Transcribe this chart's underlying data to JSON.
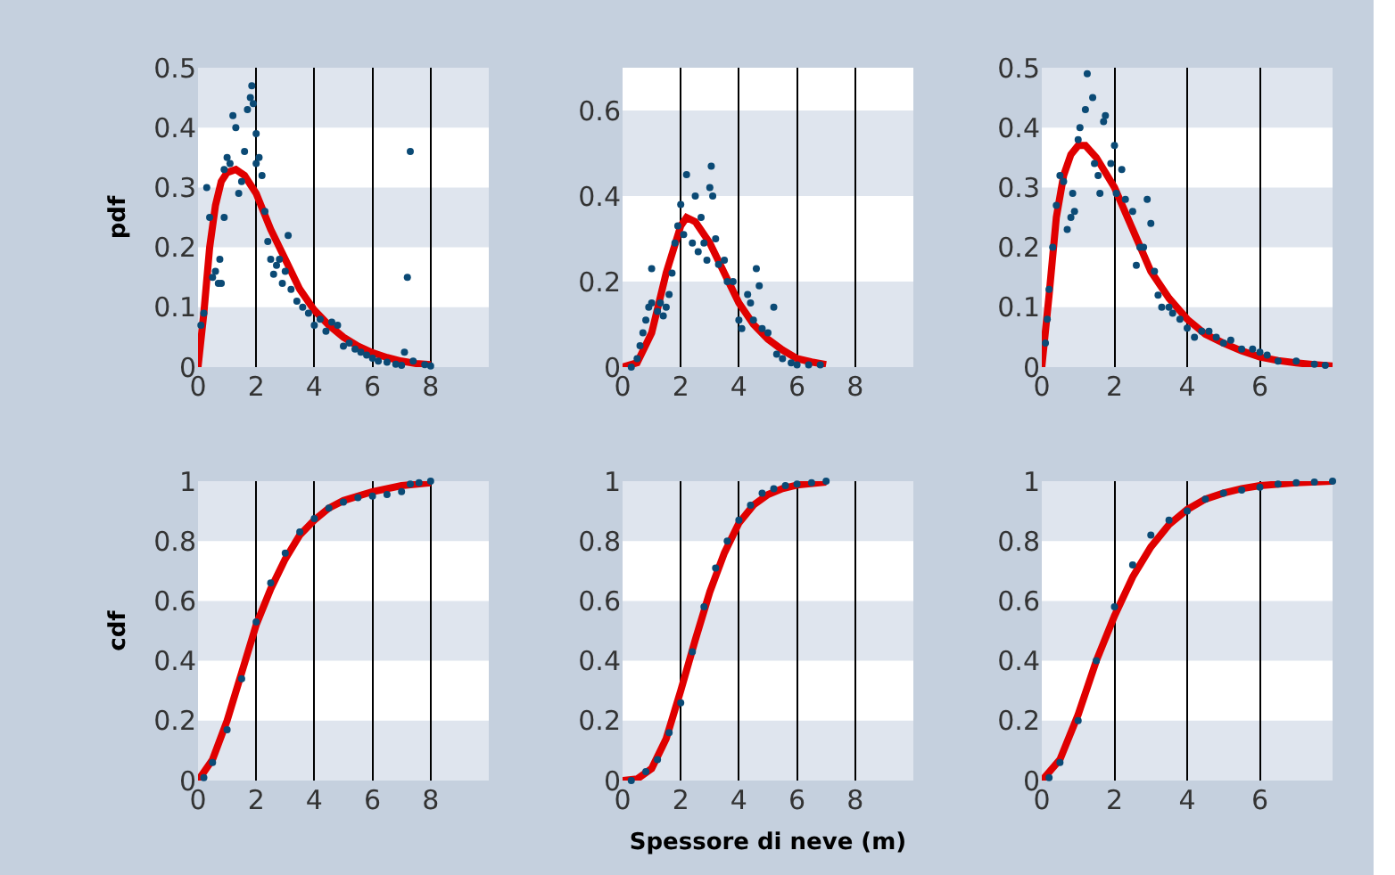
{
  "chart_data": [
    {
      "type": "scatter",
      "ylabel": "pdf",
      "xlim": [
        0,
        10
      ],
      "ylim": [
        0,
        0.5
      ],
      "xticks": [
        0,
        2,
        4,
        6,
        8
      ],
      "yticks": [
        0,
        0.1,
        0.2,
        0.3,
        0.4,
        0.5
      ],
      "grid": true,
      "series": [
        {
          "marker": "circle",
          "color": "#0b4a75",
          "x": [
            0.1,
            0.2,
            0.3,
            0.4,
            0.5,
            0.6,
            0.7,
            0.75,
            0.8,
            0.9,
            0.9,
            1.0,
            1.1,
            1.2,
            1.3,
            1.4,
            1.5,
            1.6,
            1.7,
            1.8,
            1.85,
            1.9,
            2.0,
            2.0,
            2.1,
            2.2,
            2.3,
            2.4,
            2.5,
            2.6,
            2.7,
            2.8,
            2.9,
            3.0,
            3.1,
            3.2,
            3.4,
            3.6,
            3.8,
            4.0,
            4.2,
            4.4,
            4.6,
            4.8,
            5.0,
            5.2,
            5.4,
            5.6,
            5.8,
            6.0,
            6.2,
            6.5,
            6.8,
            7.0,
            7.1,
            7.2,
            7.3,
            7.4,
            7.8,
            8.0
          ],
          "values": [
            0.07,
            0.09,
            0.3,
            0.25,
            0.15,
            0.16,
            0.14,
            0.18,
            0.14,
            0.25,
            0.33,
            0.35,
            0.34,
            0.42,
            0.4,
            0.29,
            0.31,
            0.36,
            0.43,
            0.45,
            0.47,
            0.44,
            0.39,
            0.34,
            0.35,
            0.32,
            0.26,
            0.21,
            0.18,
            0.155,
            0.17,
            0.18,
            0.14,
            0.16,
            0.22,
            0.13,
            0.11,
            0.1,
            0.09,
            0.07,
            0.08,
            0.06,
            0.075,
            0.07,
            0.035,
            0.04,
            0.03,
            0.025,
            0.02,
            0.015,
            0.01,
            0.008,
            0.005,
            0.003,
            0.025,
            0.15,
            0.36,
            0.01,
            0.004,
            0.002
          ]
        },
        {
          "type": "line",
          "color": "#e00000",
          "x": [
            0,
            0.2,
            0.4,
            0.6,
            0.8,
            1.0,
            1.3,
            1.6,
            2.0,
            2.5,
            3,
            3.5,
            4,
            4.5,
            5,
            5.5,
            6,
            6.5,
            7,
            7.5,
            8
          ],
          "values": [
            0,
            0.09,
            0.2,
            0.27,
            0.31,
            0.325,
            0.33,
            0.32,
            0.29,
            0.23,
            0.18,
            0.13,
            0.095,
            0.07,
            0.05,
            0.035,
            0.024,
            0.016,
            0.01,
            0.006,
            0.004
          ]
        }
      ]
    },
    {
      "type": "scatter",
      "xlim": [
        0,
        10
      ],
      "ylim": [
        0,
        0.7
      ],
      "xticks": [
        0,
        2,
        4,
        6,
        8
      ],
      "yticks": [
        0,
        0.2,
        0.4,
        0.6
      ],
      "grid": true,
      "series": [
        {
          "marker": "circle",
          "color": "#0b4a75",
          "x": [
            0.3,
            0.5,
            0.6,
            0.7,
            0.8,
            0.9,
            1.0,
            1.0,
            1.2,
            1.3,
            1.4,
            1.5,
            1.6,
            1.7,
            1.8,
            1.9,
            2.0,
            2.1,
            2.2,
            2.4,
            2.5,
            2.6,
            2.7,
            2.8,
            2.9,
            3.0,
            3.05,
            3.1,
            3.2,
            3.3,
            3.5,
            3.6,
            3.8,
            4.0,
            4.1,
            4.3,
            4.4,
            4.5,
            4.6,
            4.7,
            4.8,
            5.0,
            5.2,
            5.3,
            5.5,
            5.8,
            6.0,
            6.4,
            6.8
          ],
          "values": [
            0.0,
            0.02,
            0.05,
            0.08,
            0.11,
            0.14,
            0.15,
            0.23,
            0.13,
            0.15,
            0.12,
            0.14,
            0.17,
            0.22,
            0.29,
            0.33,
            0.38,
            0.31,
            0.45,
            0.29,
            0.4,
            0.27,
            0.35,
            0.29,
            0.25,
            0.42,
            0.47,
            0.4,
            0.3,
            0.24,
            0.25,
            0.2,
            0.2,
            0.11,
            0.09,
            0.17,
            0.15,
            0.11,
            0.23,
            0.19,
            0.09,
            0.08,
            0.14,
            0.03,
            0.02,
            0.01,
            0.005,
            0.005,
            0.005
          ]
        },
        {
          "type": "line",
          "color": "#e00000",
          "x": [
            0,
            0.5,
            1,
            1.5,
            2,
            2.2,
            2.5,
            3,
            3.5,
            4,
            4.5,
            5,
            5.5,
            6,
            6.5,
            7
          ],
          "values": [
            0,
            0.01,
            0.08,
            0.22,
            0.33,
            0.35,
            0.34,
            0.29,
            0.22,
            0.15,
            0.1,
            0.065,
            0.04,
            0.02,
            0.012,
            0.006
          ]
        }
      ]
    },
    {
      "type": "scatter",
      "xlim": [
        0,
        8
      ],
      "ylim": [
        0,
        0.5
      ],
      "xticks": [
        0,
        2,
        4,
        6
      ],
      "yticks": [
        0,
        0.1,
        0.2,
        0.3,
        0.4,
        0.5
      ],
      "grid": true,
      "series": [
        {
          "marker": "circle",
          "color": "#0b4a75",
          "x": [
            0.1,
            0.15,
            0.2,
            0.3,
            0.4,
            0.5,
            0.6,
            0.7,
            0.8,
            0.85,
            0.9,
            1.0,
            1.05,
            1.2,
            1.25,
            1.4,
            1.45,
            1.55,
            1.6,
            1.7,
            1.75,
            1.9,
            2.0,
            2.05,
            2.2,
            2.3,
            2.5,
            2.6,
            2.7,
            2.8,
            2.9,
            3.0,
            3.1,
            3.2,
            3.3,
            3.5,
            3.6,
            3.8,
            4.0,
            4.2,
            4.4,
            4.6,
            4.8,
            5.0,
            5.2,
            5.5,
            5.8,
            6.0,
            6.2,
            6.5,
            7.0,
            7.5,
            7.8
          ],
          "values": [
            0.04,
            0.08,
            0.13,
            0.2,
            0.27,
            0.32,
            0.31,
            0.23,
            0.25,
            0.29,
            0.26,
            0.38,
            0.4,
            0.43,
            0.49,
            0.45,
            0.34,
            0.32,
            0.29,
            0.41,
            0.42,
            0.34,
            0.37,
            0.29,
            0.33,
            0.28,
            0.26,
            0.17,
            0.2,
            0.2,
            0.28,
            0.24,
            0.16,
            0.12,
            0.1,
            0.1,
            0.09,
            0.08,
            0.065,
            0.05,
            0.06,
            0.06,
            0.05,
            0.04,
            0.045,
            0.03,
            0.03,
            0.025,
            0.02,
            0.01,
            0.01,
            0.005,
            0.003
          ]
        },
        {
          "type": "line",
          "color": "#e00000",
          "x": [
            0,
            0.2,
            0.4,
            0.6,
            0.8,
            1.0,
            1.2,
            1.5,
            2,
            2.5,
            3,
            3.5,
            4,
            4.5,
            5,
            5.5,
            6,
            6.5,
            7,
            7.5,
            8
          ],
          "values": [
            0,
            0.12,
            0.25,
            0.32,
            0.355,
            0.37,
            0.37,
            0.35,
            0.3,
            0.23,
            0.16,
            0.115,
            0.08,
            0.055,
            0.04,
            0.027,
            0.017,
            0.011,
            0.007,
            0.004,
            0.002
          ]
        }
      ]
    },
    {
      "type": "scatter",
      "ylabel": "cdf",
      "xlim": [
        0,
        10
      ],
      "ylim": [
        0,
        1
      ],
      "xticks": [
        0,
        2,
        4,
        6,
        8
      ],
      "yticks": [
        0,
        0.2,
        0.4,
        0.6,
        0.8,
        1
      ],
      "grid": true,
      "series": [
        {
          "marker": "circle",
          "color": "#0b4a75",
          "x": [
            0.2,
            0.5,
            1,
            1.5,
            2,
            2.5,
            3,
            3.5,
            4,
            4.5,
            5,
            5.5,
            6,
            6.5,
            7,
            7.3,
            7.6,
            8
          ],
          "values": [
            0.01,
            0.06,
            0.17,
            0.34,
            0.53,
            0.66,
            0.76,
            0.83,
            0.875,
            0.91,
            0.93,
            0.945,
            0.95,
            0.955,
            0.965,
            0.99,
            0.995,
            1.0
          ]
        },
        {
          "type": "line",
          "color": "#e00000",
          "x": [
            0,
            0.5,
            1,
            1.5,
            2,
            2.5,
            3,
            3.5,
            4,
            4.5,
            5,
            6,
            7,
            8
          ],
          "values": [
            0,
            0.07,
            0.2,
            0.36,
            0.52,
            0.64,
            0.74,
            0.82,
            0.87,
            0.91,
            0.935,
            0.965,
            0.985,
            0.995
          ]
        }
      ]
    },
    {
      "type": "scatter",
      "xlabel": "Spessore di neve (m)",
      "xlim": [
        0,
        10
      ],
      "ylim": [
        0,
        1
      ],
      "xticks": [
        0,
        2,
        4,
        6,
        8
      ],
      "yticks": [
        0,
        0.2,
        0.4,
        0.6,
        0.8,
        1
      ],
      "grid": true,
      "series": [
        {
          "marker": "circle",
          "color": "#0b4a75",
          "x": [
            0.3,
            0.8,
            1.2,
            1.6,
            2,
            2.4,
            2.8,
            3.2,
            3.6,
            4,
            4.4,
            4.8,
            5.2,
            5.6,
            6,
            6.5,
            7
          ],
          "values": [
            0,
            0.03,
            0.07,
            0.16,
            0.26,
            0.43,
            0.58,
            0.71,
            0.8,
            0.87,
            0.92,
            0.96,
            0.975,
            0.985,
            0.99,
            0.995,
            1.0
          ]
        },
        {
          "type": "line",
          "color": "#e00000",
          "x": [
            0,
            0.5,
            1,
            1.5,
            2,
            2.5,
            3,
            3.5,
            4,
            4.5,
            5,
            5.5,
            6,
            7
          ],
          "values": [
            0,
            0.005,
            0.04,
            0.14,
            0.3,
            0.47,
            0.63,
            0.76,
            0.86,
            0.92,
            0.955,
            0.975,
            0.987,
            0.997
          ]
        }
      ]
    },
    {
      "type": "scatter",
      "xlim": [
        0,
        8
      ],
      "ylim": [
        0,
        1
      ],
      "xticks": [
        0,
        2,
        4,
        6
      ],
      "yticks": [
        0,
        0.2,
        0.4,
        0.6,
        0.8,
        1
      ],
      "grid": true,
      "series": [
        {
          "marker": "circle",
          "color": "#0b4a75",
          "x": [
            0.2,
            0.5,
            1,
            1.5,
            2,
            2.5,
            3,
            3.5,
            4,
            4.5,
            5,
            5.5,
            6,
            6.5,
            7,
            7.5,
            8
          ],
          "values": [
            0.01,
            0.06,
            0.2,
            0.4,
            0.58,
            0.72,
            0.82,
            0.87,
            0.9,
            0.94,
            0.96,
            0.97,
            0.98,
            0.99,
            0.995,
            0.997,
            1.0
          ]
        },
        {
          "type": "line",
          "color": "#e00000",
          "x": [
            0,
            0.5,
            1,
            1.5,
            2,
            2.5,
            3,
            3.5,
            4,
            4.5,
            5,
            5.5,
            6,
            7,
            8
          ],
          "values": [
            0,
            0.07,
            0.22,
            0.4,
            0.55,
            0.68,
            0.78,
            0.855,
            0.905,
            0.94,
            0.96,
            0.975,
            0.985,
            0.995,
            1.0
          ]
        }
      ]
    }
  ]
}
